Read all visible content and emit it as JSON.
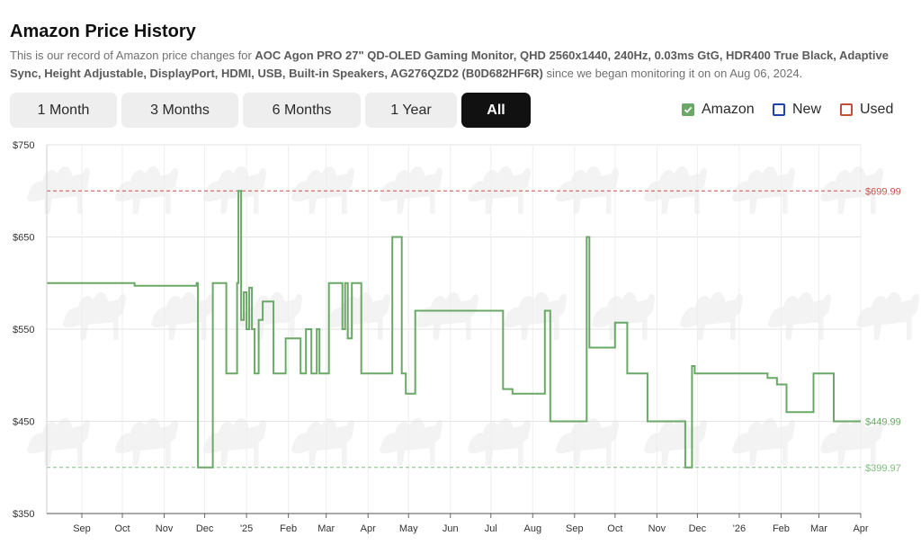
{
  "header": {
    "title": "Amazon Price History",
    "desc_prefix": "This is our record of Amazon price changes for ",
    "product": "AOC Agon PRO 27\" QD-OLED Gaming Monitor, QHD 2560x1440, 240Hz, 0.03ms GtG, HDR400 True Black, Adaptive Sync, Height Adjustable, DisplayPort, HDMI, USB, Built-in Speakers, AG276QZD2 (B0D682HF6R)",
    "desc_suffix": " since we began monitoring it on on Aug 06, 2024."
  },
  "range_tabs": [
    {
      "label": "1 Month",
      "active": false
    },
    {
      "label": "3 Months",
      "active": false
    },
    {
      "label": "6 Months",
      "active": false
    },
    {
      "label": "1 Year",
      "active": false
    },
    {
      "label": "All",
      "active": true
    }
  ],
  "legend": [
    {
      "label": "Amazon",
      "checked": true,
      "color": "#6aa867"
    },
    {
      "label": "New",
      "checked": false,
      "color": "#2244aa"
    },
    {
      "label": "Used",
      "checked": false,
      "color": "#c0503a"
    }
  ],
  "chart_data": {
    "type": "line",
    "title": "",
    "xlabel": "",
    "ylabel": "",
    "ylim": [
      350,
      750
    ],
    "y_ticks": [
      "$750",
      "$650",
      "$550",
      "$450",
      "$350"
    ],
    "x_ticks": [
      "Sep",
      "Oct",
      "Nov",
      "Dec",
      "'25",
      "Feb",
      "Mar",
      "Apr",
      "May",
      "Jun",
      "Jul",
      "Aug",
      "Sep",
      "Oct",
      "Nov",
      "Dec",
      "'26",
      "Feb",
      "Mar",
      "Apr"
    ],
    "x_range": [
      "2024-08-06",
      "2026-04-01"
    ],
    "grid": true,
    "reference_lines": [
      {
        "label": "$699.99",
        "value": 699.99,
        "color": "#c9504a"
      },
      {
        "label": "$399.97",
        "value": 399.97,
        "color": "#7cbf7a"
      }
    ],
    "current_label": {
      "label": "$449.99",
      "value": 449.99,
      "color": "#6aa867"
    },
    "series": [
      {
        "name": "Amazon",
        "color": "#6aa867",
        "step": true,
        "points": [
          [
            "2024-08-06",
            599.99
          ],
          [
            "2024-10-10",
            596.99
          ],
          [
            "2024-11-25",
            599.99
          ],
          [
            "2024-11-26",
            399.99
          ],
          [
            "2024-12-07",
            599.99
          ],
          [
            "2024-12-16",
            599.99
          ],
          [
            "2024-12-17",
            501.99
          ],
          [
            "2024-12-25",
            599.99
          ],
          [
            "2024-12-26",
            699.99
          ],
          [
            "2024-12-28",
            559.99
          ],
          [
            "2024-12-30",
            589.99
          ],
          [
            "2025-01-01",
            549.99
          ],
          [
            "2025-01-03",
            594.99
          ],
          [
            "2025-01-05",
            549.99
          ],
          [
            "2025-01-07",
            501.99
          ],
          [
            "2025-01-10",
            559.99
          ],
          [
            "2025-01-13",
            579.99
          ],
          [
            "2025-01-21",
            501.99
          ],
          [
            "2025-01-30",
            539.99
          ],
          [
            "2025-02-10",
            501.99
          ],
          [
            "2025-02-14",
            549.99
          ],
          [
            "2025-02-18",
            501.99
          ],
          [
            "2025-02-22",
            549.99
          ],
          [
            "2025-02-24",
            501.99
          ],
          [
            "2025-03-03",
            599.99
          ],
          [
            "2025-03-13",
            549.99
          ],
          [
            "2025-03-15",
            599.99
          ],
          [
            "2025-03-17",
            539.99
          ],
          [
            "2025-03-20",
            599.99
          ],
          [
            "2025-03-27",
            501.99
          ],
          [
            "2025-04-19",
            649.99
          ],
          [
            "2025-04-26",
            501.99
          ],
          [
            "2025-04-29",
            479.99
          ],
          [
            "2025-05-06",
            569.99
          ],
          [
            "2025-07-10",
            484.99
          ],
          [
            "2025-07-17",
            479.99
          ],
          [
            "2025-08-10",
            569.99
          ],
          [
            "2025-08-14",
            449.99
          ],
          [
            "2025-09-10",
            649.99
          ],
          [
            "2025-09-12",
            529.99
          ],
          [
            "2025-09-15",
            529.99
          ],
          [
            "2025-10-01",
            556.99
          ],
          [
            "2025-10-10",
            501.99
          ],
          [
            "2025-10-25",
            449.99
          ],
          [
            "2025-11-22",
            399.99
          ],
          [
            "2025-11-27",
            509.99
          ],
          [
            "2025-11-29",
            501.99
          ],
          [
            "2026-01-22",
            496.99
          ],
          [
            "2026-01-29",
            489.99
          ],
          [
            "2026-02-05",
            459.99
          ],
          [
            "2026-02-25",
            501.99
          ],
          [
            "2026-03-12",
            449.99
          ],
          [
            "2026-04-01",
            449.99
          ]
        ]
      }
    ]
  }
}
